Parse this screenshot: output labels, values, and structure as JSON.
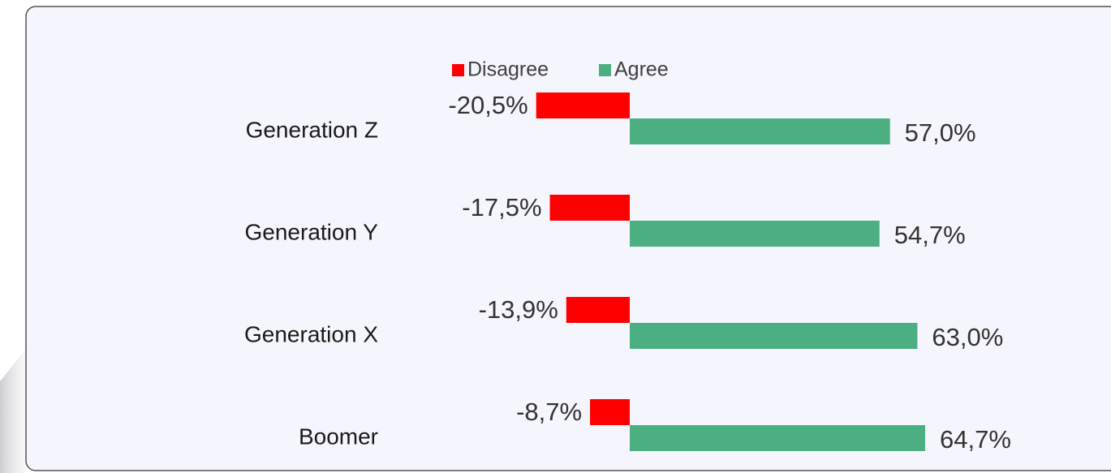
{
  "chart_data": {
    "type": "bar",
    "orientation": "horizontal",
    "categories": [
      "Generation Z",
      "Generation Y",
      "Generation X",
      "Boomer"
    ],
    "series": [
      {
        "name": "Disagree",
        "color": "#ff0000",
        "values": [
          -20.5,
          -17.5,
          -13.9,
          -8.7
        ],
        "value_labels": [
          "-20,5%",
          "-17,5%",
          "-13,9%",
          "-8,7%"
        ]
      },
      {
        "name": "Agree",
        "color": "#4caf82",
        "values": [
          57.0,
          54.7,
          63.0,
          64.7
        ],
        "value_labels": [
          "57,0%",
          "54,7%",
          "63,0%",
          "64,7%"
        ]
      }
    ],
    "legend": "top"
  }
}
